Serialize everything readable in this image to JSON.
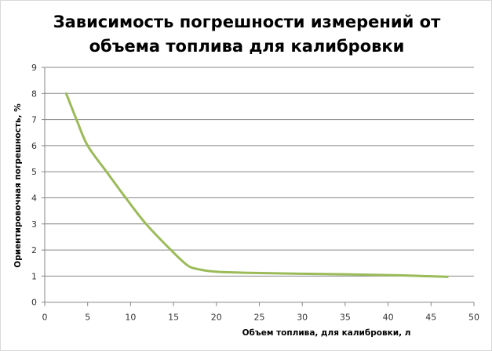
{
  "chart_data": {
    "type": "line",
    "title_lines": [
      "Зависимость погрешности измерений от",
      "объема топлива для калибровки"
    ],
    "xlabel": "Объем топлива, для калибровки,  л",
    "ylabel": "Ориентировочная  погрешность, %",
    "xlim": [
      0,
      50
    ],
    "ylim": [
      0,
      9
    ],
    "xticks": [
      0,
      5,
      10,
      15,
      20,
      25,
      30,
      35,
      40,
      45,
      50
    ],
    "yticks": [
      0,
      1,
      2,
      3,
      4,
      5,
      6,
      7,
      8,
      9
    ],
    "grid": "horizontal",
    "legend": "none",
    "line_color": "#9bbb59",
    "series": [
      {
        "x": [
          2.5,
          3.7,
          5.0,
          7.2,
          9.5,
          11.8,
          14.7,
          16.6,
          17.8,
          19.9,
          23.2,
          30,
          40,
          46.9
        ],
        "y": [
          8.0,
          7.0,
          6.0,
          5.0,
          3.97,
          3.0,
          2.0,
          1.42,
          1.27,
          1.17,
          1.13,
          1.09,
          1.04,
          0.97
        ]
      }
    ]
  }
}
